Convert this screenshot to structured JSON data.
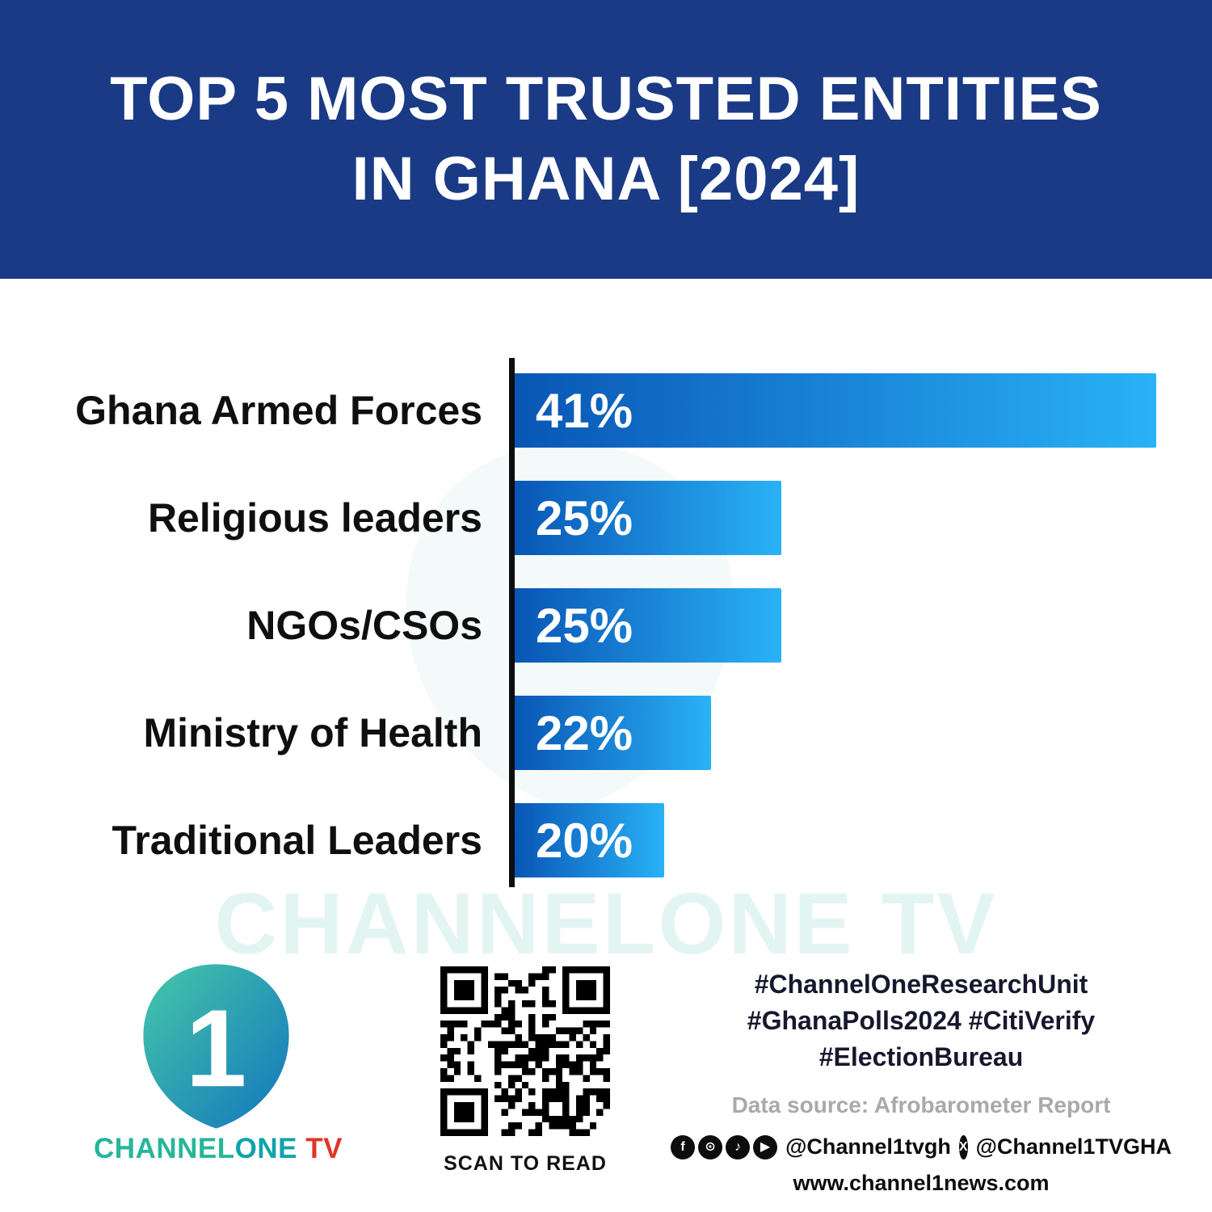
{
  "banner": {
    "title_line1": "TOP 5 MOST TRUSTED ENTITIES",
    "title_line2": "IN GHANA [2024]"
  },
  "chart_data": {
    "type": "bar",
    "orientation": "horizontal",
    "title": "Top 5 Most Trusted Entities in Ghana [2024]",
    "categories": [
      "Ghana Armed Forces",
      "Religious leaders",
      "NGOs/CSOs",
      "Ministry of Health",
      "Traditional Leaders"
    ],
    "values": [
      41,
      25,
      25,
      22,
      20
    ],
    "value_labels": [
      "41%",
      "25%",
      "25%",
      "22%",
      "20%"
    ],
    "unit": "%",
    "xlim": [
      0,
      42
    ],
    "legend": "none",
    "grid": "off",
    "bar_gradient": [
      "#0956B5",
      "#29B2F6"
    ],
    "axis_color": "#0D0D0D",
    "source": "Afrobarometer Report"
  },
  "watermark": {
    "text": "CHANNELONE TV"
  },
  "footer": {
    "brand": {
      "channel": "CHANNEL",
      "one": "ONE",
      "tv": " TV",
      "logo_numeral": "1"
    },
    "qr_caption": "SCAN TO READ",
    "hashtags": {
      "line1": "#ChannelOneResearchUnit",
      "line2": "#GhanaPolls2024 #CitiVerify",
      "line3": "#ElectionBureau"
    },
    "data_source": "Data source: Afrobarometer Report",
    "social": {
      "handle1": "@Channel1tvgh",
      "handle2": "@Channel1TVGHA"
    },
    "website": "www.channel1news.com"
  },
  "colors": {
    "banner_bg": "#1A3A85",
    "bar_start": "#0956B5",
    "bar_end": "#29B2F6",
    "brand_teal": "#26B69A",
    "brand_red": "#E2342A",
    "hashtag_text": "#17172E",
    "source_gray": "#A9A9A9"
  }
}
